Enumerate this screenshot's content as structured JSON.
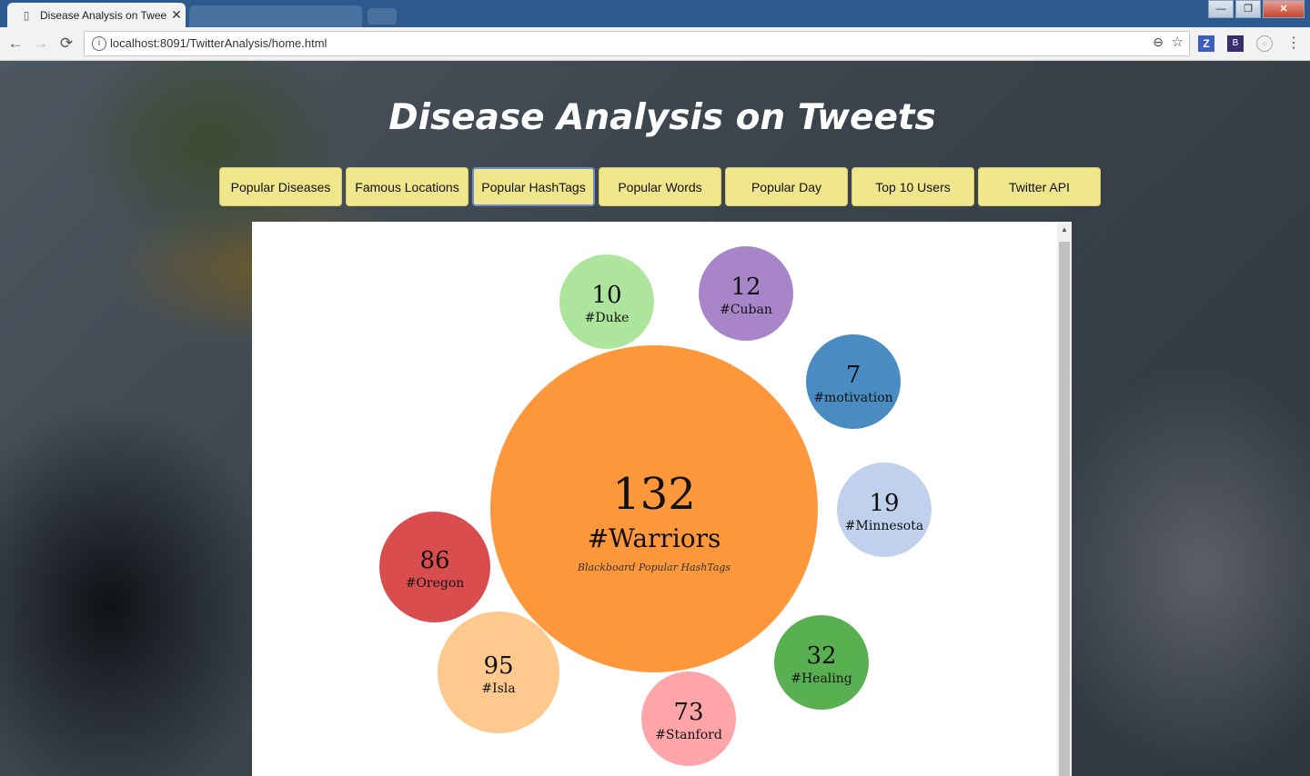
{
  "browser": {
    "tab_title": "Disease Analysis on Twee",
    "url": "localhost:8091/TwitterAnalysis/home.html",
    "winctrl": {
      "min": "—",
      "max": "❐",
      "close": "✕"
    },
    "nav": {
      "back": "←",
      "forward": "→",
      "reload": "⟳",
      "menu": "⋮",
      "zoom": "⊖",
      "star": "☆",
      "info": "i"
    },
    "ext": {
      "z": "Z",
      "b": "B",
      "c": "○"
    }
  },
  "page": {
    "title": "Disease Analysis on Tweets",
    "nav_buttons": [
      "Popular Diseases",
      "Famous Locations",
      "Popular HashTags",
      "Popular Words",
      "Popular Day",
      "Top 10 Users",
      "Twitter API"
    ],
    "active_button": "Popular HashTags"
  },
  "chart_data": {
    "type": "bubble",
    "title": "Blackboard Popular HashTags",
    "bubbles": [
      {
        "label": "#Warriors",
        "value": 132,
        "color": "#fd973b"
      },
      {
        "label": "#Duke",
        "value": 10,
        "color": "#aee59c"
      },
      {
        "label": "#Cuban",
        "value": 12,
        "color": "#a884c9"
      },
      {
        "label": "#motivation",
        "value": 7,
        "color": "#4a8cc1"
      },
      {
        "label": "#Minnesota",
        "value": 19,
        "color": "#bfd1ec"
      },
      {
        "label": "#Oregon",
        "value": 86,
        "color": "#da4d4f"
      },
      {
        "label": "#Isla",
        "value": 95,
        "color": "#fec98f"
      },
      {
        "label": "#Stanford",
        "value": 73,
        "color": "#fda5a8"
      },
      {
        "label": "#Healing",
        "value": 32,
        "color": "#58b050"
      }
    ]
  }
}
